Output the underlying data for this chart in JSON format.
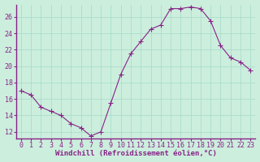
{
  "x": [
    0,
    1,
    2,
    3,
    4,
    5,
    6,
    7,
    8,
    9,
    10,
    11,
    12,
    13,
    14,
    15,
    16,
    17,
    18,
    19,
    20,
    21,
    22,
    23
  ],
  "y": [
    17.0,
    16.5,
    15.0,
    14.5,
    14.0,
    13.0,
    12.5,
    11.5,
    12.0,
    15.5,
    19.0,
    21.5,
    23.0,
    24.5,
    25.0,
    27.0,
    27.0,
    27.2,
    27.0,
    25.5,
    22.5,
    21.0,
    20.5,
    19.5
  ],
  "line_color": "#882288",
  "marker": "+",
  "markersize": 4,
  "linewidth": 0.8,
  "markeredgewidth": 0.8,
  "bg_color": "#cceedd",
  "grid_color": "#aaddcc",
  "xlabel": "Windchill (Refroidissement éolien,°C)",
  "xlabel_color": "#882288",
  "tick_color": "#882288",
  "axis_line_color": "#882288",
  "ylim": [
    11.2,
    27.5
  ],
  "xlim": [
    -0.5,
    23.5
  ],
  "yticks": [
    12,
    14,
    16,
    18,
    20,
    22,
    24,
    26
  ],
  "xticks": [
    0,
    1,
    2,
    3,
    4,
    5,
    6,
    7,
    8,
    9,
    10,
    11,
    12,
    13,
    14,
    15,
    16,
    17,
    18,
    19,
    20,
    21,
    22,
    23
  ],
  "xlabel_fontsize": 6.5,
  "tick_fontsize": 6.0
}
